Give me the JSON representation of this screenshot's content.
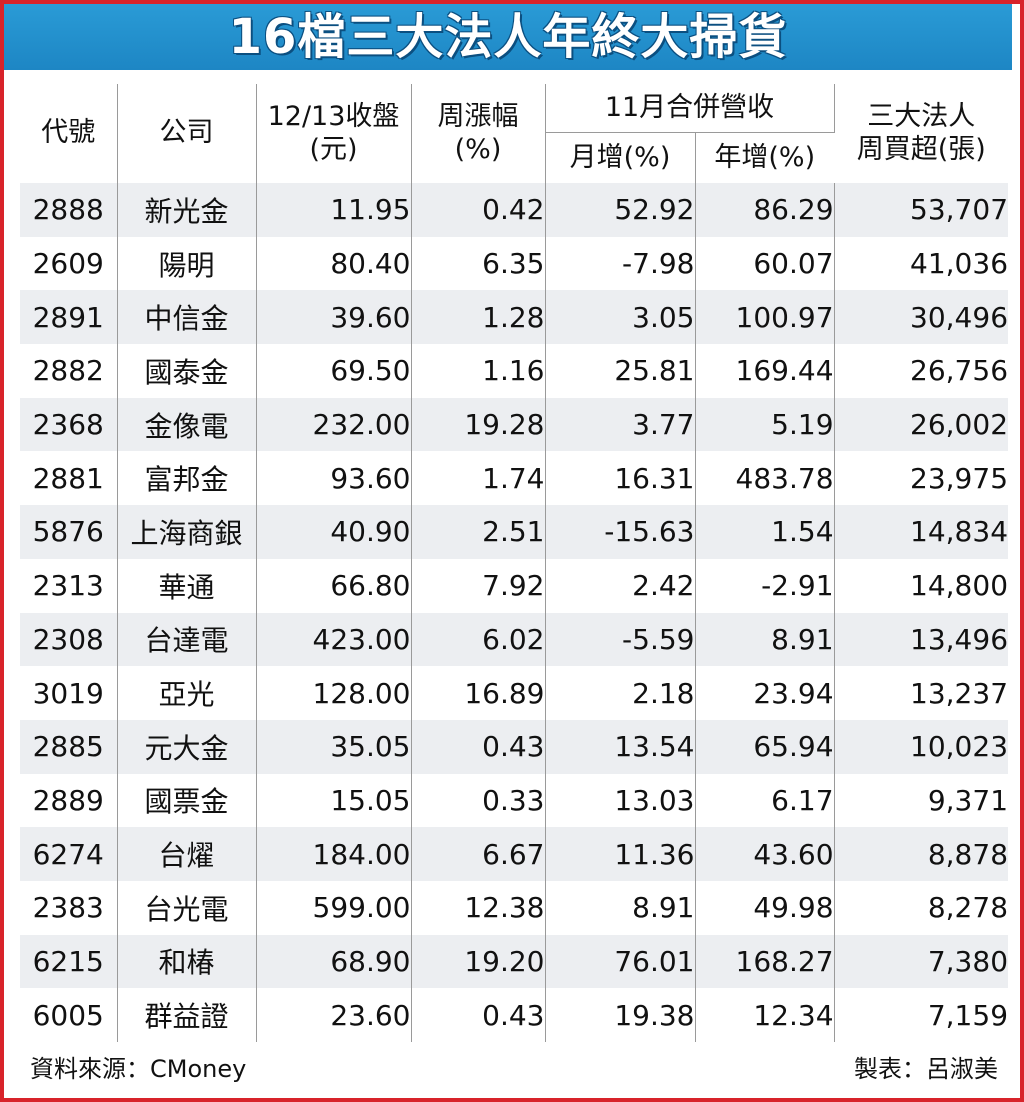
{
  "title": "16檔三大法人年終大掃貨",
  "headers": {
    "code": "代號",
    "company": "公司",
    "close_line1": "12/13收盤",
    "close_line2": "(元)",
    "weekly_line1": "周漲幅",
    "weekly_line2": "(%)",
    "revenue_group": "11月合併營收",
    "mom": "月增(%)",
    "yoy": "年增(%)",
    "inst_line1": "三大法人",
    "inst_line2": "周買超(張)"
  },
  "rows": [
    {
      "code": "2888",
      "company": "新光金",
      "close": "11.95",
      "weekly": "0.42",
      "mom": "52.92",
      "yoy": "86.29",
      "net_buy": "53,707"
    },
    {
      "code": "2609",
      "company": "陽明",
      "close": "80.40",
      "weekly": "6.35",
      "mom": "-7.98",
      "yoy": "60.07",
      "net_buy": "41,036"
    },
    {
      "code": "2891",
      "company": "中信金",
      "close": "39.60",
      "weekly": "1.28",
      "mom": "3.05",
      "yoy": "100.97",
      "net_buy": "30,496"
    },
    {
      "code": "2882",
      "company": "國泰金",
      "close": "69.50",
      "weekly": "1.16",
      "mom": "25.81",
      "yoy": "169.44",
      "net_buy": "26,756"
    },
    {
      "code": "2368",
      "company": "金像電",
      "close": "232.00",
      "weekly": "19.28",
      "mom": "3.77",
      "yoy": "5.19",
      "net_buy": "26,002"
    },
    {
      "code": "2881",
      "company": "富邦金",
      "close": "93.60",
      "weekly": "1.74",
      "mom": "16.31",
      "yoy": "483.78",
      "net_buy": "23,975"
    },
    {
      "code": "5876",
      "company": "上海商銀",
      "close": "40.90",
      "weekly": "2.51",
      "mom": "-15.63",
      "yoy": "1.54",
      "net_buy": "14,834"
    },
    {
      "code": "2313",
      "company": "華通",
      "close": "66.80",
      "weekly": "7.92",
      "mom": "2.42",
      "yoy": "-2.91",
      "net_buy": "14,800"
    },
    {
      "code": "2308",
      "company": "台達電",
      "close": "423.00",
      "weekly": "6.02",
      "mom": "-5.59",
      "yoy": "8.91",
      "net_buy": "13,496"
    },
    {
      "code": "3019",
      "company": "亞光",
      "close": "128.00",
      "weekly": "16.89",
      "mom": "2.18",
      "yoy": "23.94",
      "net_buy": "13,237"
    },
    {
      "code": "2885",
      "company": "元大金",
      "close": "35.05",
      "weekly": "0.43",
      "mom": "13.54",
      "yoy": "65.94",
      "net_buy": "10,023"
    },
    {
      "code": "2889",
      "company": "國票金",
      "close": "15.05",
      "weekly": "0.33",
      "mom": "13.03",
      "yoy": "6.17",
      "net_buy": "9,371"
    },
    {
      "code": "6274",
      "company": "台燿",
      "close": "184.00",
      "weekly": "6.67",
      "mom": "11.36",
      "yoy": "43.60",
      "net_buy": "8,878"
    },
    {
      "code": "2383",
      "company": "台光電",
      "close": "599.00",
      "weekly": "12.38",
      "mom": "8.91",
      "yoy": "49.98",
      "net_buy": "8,278"
    },
    {
      "code": "6215",
      "company": "和椿",
      "close": "68.90",
      "weekly": "19.20",
      "mom": "76.01",
      "yoy": "168.27",
      "net_buy": "7,380"
    },
    {
      "code": "6005",
      "company": "群益證",
      "close": "23.60",
      "weekly": "0.43",
      "mom": "19.38",
      "yoy": "12.34",
      "net_buy": "7,159"
    }
  ],
  "footer": {
    "source": "資料來源：CMoney",
    "credit": "製表：呂淑美"
  },
  "colors": {
    "border": "#d8232a",
    "title_bg": "#1d86c4",
    "stripe": "#eceef1"
  }
}
